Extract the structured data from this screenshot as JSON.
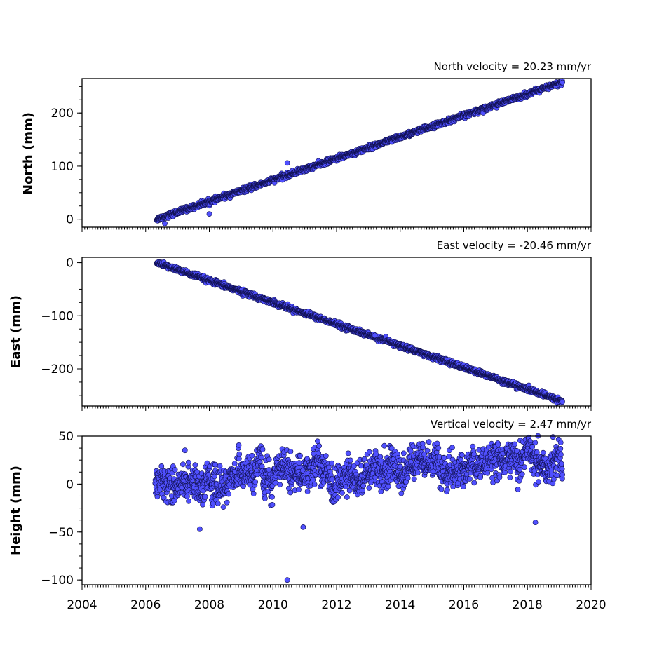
{
  "chart_data": [
    {
      "type": "scatter",
      "title": "North velocity = 20.23 mm/yr",
      "ylabel": "North (mm)",
      "xlim": [
        2004,
        2020
      ],
      "ylim": [
        -15,
        265
      ],
      "yticks": [
        0,
        100,
        200
      ],
      "velocity_mm_per_yr": 20.23,
      "time_range": [
        2006.35,
        2019.1
      ],
      "series": [
        {
          "values_trend": {
            "start": [
              2006.35,
              0
            ],
            "end": [
              2019.1,
              258
            ]
          }
        }
      ],
      "outliers": [
        [
          2010.45,
          106
        ],
        [
          2008.0,
          10
        ],
        [
          2006.6,
          -8
        ]
      ]
    },
    {
      "type": "scatter",
      "title": "East velocity = -20.46 mm/yr",
      "ylabel": "East (mm)",
      "xlim": [
        2004,
        2020
      ],
      "ylim": [
        -270,
        10
      ],
      "yticks": [
        0,
        -100,
        -200
      ],
      "velocity_mm_per_yr": -20.46,
      "time_range": [
        2006.35,
        2019.1
      ],
      "series": [
        {
          "values_trend": {
            "start": [
              2006.35,
              0
            ],
            "end": [
              2019.1,
              -261
            ]
          }
        }
      ],
      "outliers": [
        [
          2013.2,
          -137
        ]
      ]
    },
    {
      "type": "scatter",
      "title": "Vertical velocity = 2.47 mm/yr",
      "ylabel": "Height (mm)",
      "xlim": [
        2004,
        2020
      ],
      "ylim": [
        -105,
        50
      ],
      "yticks": [
        50,
        0,
        -50,
        -100
      ],
      "velocity_mm_per_yr": 2.47,
      "time_range": [
        2006.3,
        2019.1
      ],
      "series": [
        {
          "values_trend": {
            "start": [
              2006.3,
              -2
            ],
            "end": [
              2019.1,
              28
            ]
          },
          "scatter_std_mm": 10
        }
      ],
      "outliers": [
        [
          2010.45,
          -100
        ],
        [
          2018.25,
          -40
        ],
        [
          2007.7,
          -47
        ],
        [
          2010.95,
          -45
        ],
        [
          2013.5,
          40
        ],
        [
          2014.9,
          44
        ]
      ]
    }
  ],
  "shared_x_axis": {
    "ticks": [
      "2004",
      "2006",
      "2008",
      "2010",
      "2012",
      "2014",
      "2016",
      "2018",
      "2020"
    ]
  },
  "colors": {
    "marker_fill": "#5050ff",
    "marker_edge": "#101050"
  }
}
